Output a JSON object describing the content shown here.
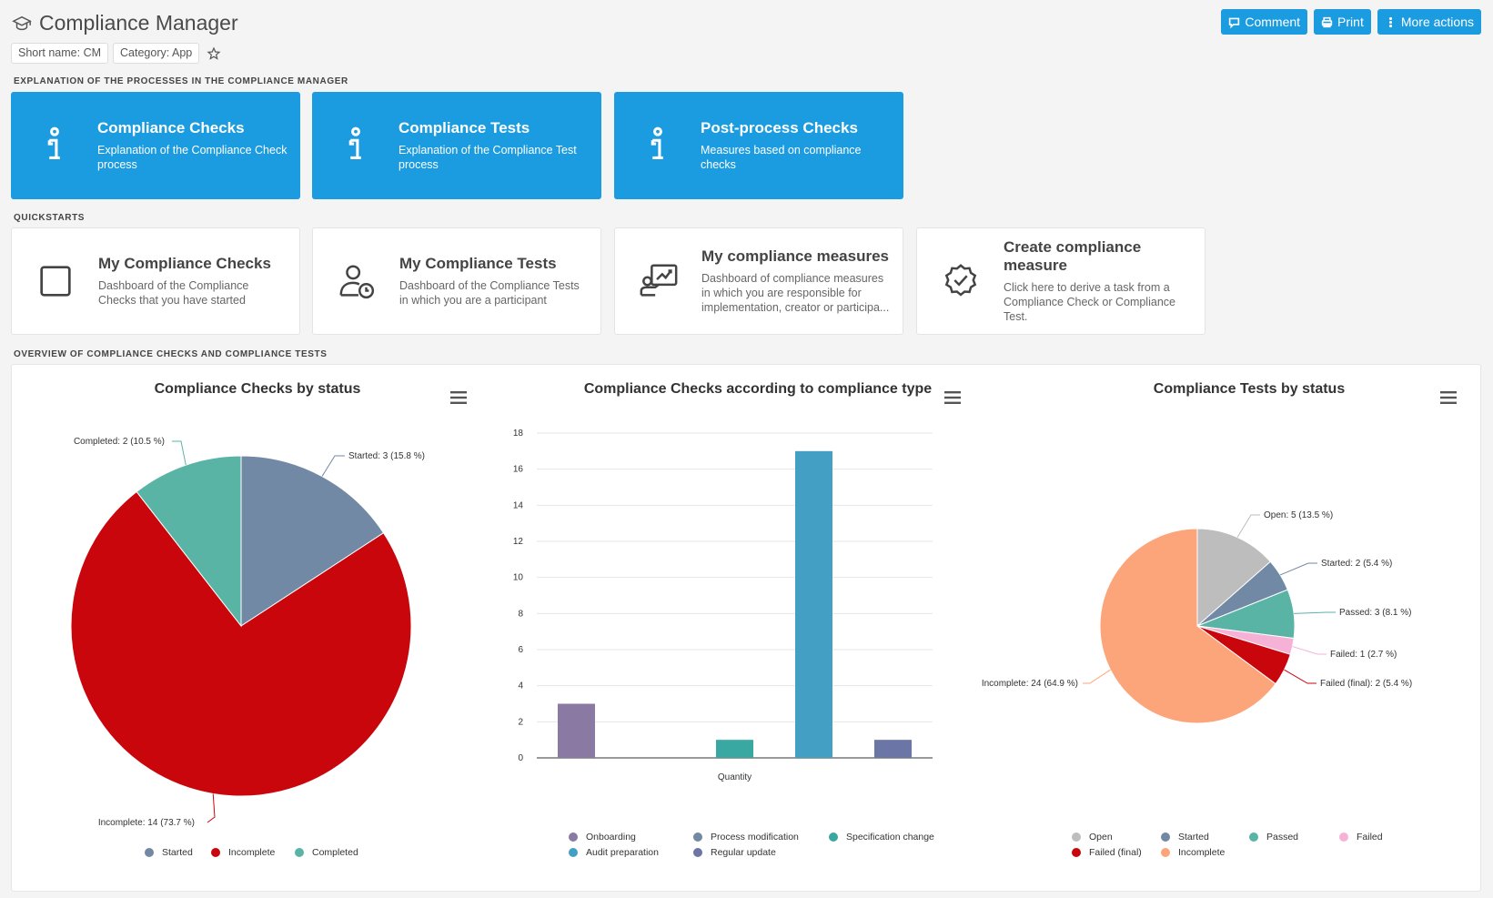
{
  "header": {
    "title": "Compliance Manager",
    "comment_label": "Comment",
    "print_label": "Print",
    "more_label": "More actions"
  },
  "tags": {
    "short_name": "Short name: CM",
    "category": "Category: App"
  },
  "sections": {
    "explanation": "EXPLANATION OF THE PROCESSES IN THE COMPLIANCE MANAGER",
    "quickstarts": "QUICKSTARTS",
    "overview": "OVERVIEW OF COMPLIANCE CHECKS AND COMPLIANCE TESTS"
  },
  "explanation_tiles": [
    {
      "title": "Compliance Checks",
      "subtitle": "Explanation of the Compliance Check process"
    },
    {
      "title": "Compliance Tests",
      "subtitle": "Explanation of the Compliance Test process"
    },
    {
      "title": "Post-process Checks",
      "subtitle": "Measures based on compliance checks"
    }
  ],
  "quickstart_tiles": [
    {
      "title": "My Compliance Checks",
      "subtitle": "Dashboard of the Compliance Checks that you have started",
      "icon": "checkbox-icon"
    },
    {
      "title": "My Compliance Tests",
      "subtitle": "Dashboard of the Compliance Tests in which you are a participant",
      "icon": "user-clock-icon"
    },
    {
      "title": "My compliance measures",
      "subtitle": "Dashboard of compliance measures in which you are responsible for implementation, creator or participa...",
      "icon": "presentation-icon"
    },
    {
      "title": "Create compliance measure",
      "subtitle": "Click here to derive a task from a Compliance Check or Compliance Test.",
      "icon": "badge-check-icon"
    }
  ],
  "chart_data": [
    {
      "type": "pie",
      "title": "Compliance Checks by status",
      "slices": [
        {
          "name": "Started",
          "value": 3,
          "percent": 15.8,
          "label": "Started: 3 (15.8 %)",
          "color": "#7189a4"
        },
        {
          "name": "Incomplete",
          "value": 14,
          "percent": 73.7,
          "label": "Incomplete: 14 (73.7 %)",
          "color": "#c8060c"
        },
        {
          "name": "Completed",
          "value": 2,
          "percent": 10.5,
          "label": "Completed: 2 (10.5 %)",
          "color": "#5ab4a5"
        }
      ],
      "legend": [
        "Started",
        "Incomplete",
        "Completed"
      ]
    },
    {
      "type": "bar",
      "title": "Compliance Checks according to compliance type",
      "xlabel": "Quantity",
      "ylim": [
        0,
        18
      ],
      "yticks": [
        "0",
        "2",
        "4",
        "6",
        "8",
        "10",
        "12",
        "14",
        "16",
        "18"
      ],
      "series": [
        {
          "name": "Onboarding",
          "value": 3,
          "color": "#8a7aa3"
        },
        {
          "name": "Process modification",
          "value": 0,
          "color": "#7189a4"
        },
        {
          "name": "Specification change",
          "value": 1,
          "color": "#3aa8a2"
        },
        {
          "name": "Audit preparation",
          "value": 17,
          "color": "#43a0c4"
        },
        {
          "name": "Regular update",
          "value": 1,
          "color": "#6b76a6"
        }
      ]
    },
    {
      "type": "pie",
      "title": "Compliance Tests by status",
      "slices": [
        {
          "name": "Open",
          "value": 5,
          "percent": 13.5,
          "label": "Open: 5 (13.5 %)",
          "color": "#bdbdbd"
        },
        {
          "name": "Started",
          "value": 2,
          "percent": 5.4,
          "label": "Started: 2 (5.4 %)",
          "color": "#7189a4"
        },
        {
          "name": "Passed",
          "value": 3,
          "percent": 8.1,
          "label": "Passed: 3 (8.1 %)",
          "color": "#5ab4a5"
        },
        {
          "name": "Failed",
          "value": 1,
          "percent": 2.7,
          "label": "Failed: 1 (2.7 %)",
          "color": "#f6b2d6"
        },
        {
          "name": "Failed (final)",
          "value": 2,
          "percent": 5.4,
          "label": "Failed (final): 2 (5.4 %)",
          "color": "#c8060c"
        },
        {
          "name": "Incomplete",
          "value": 24,
          "percent": 64.9,
          "label": "Incomplete: 24 (64.9 %)",
          "color": "#fda57a"
        }
      ],
      "legend": [
        "Open",
        "Started",
        "Passed",
        "Failed",
        "Failed (final)",
        "Incomplete"
      ]
    }
  ]
}
